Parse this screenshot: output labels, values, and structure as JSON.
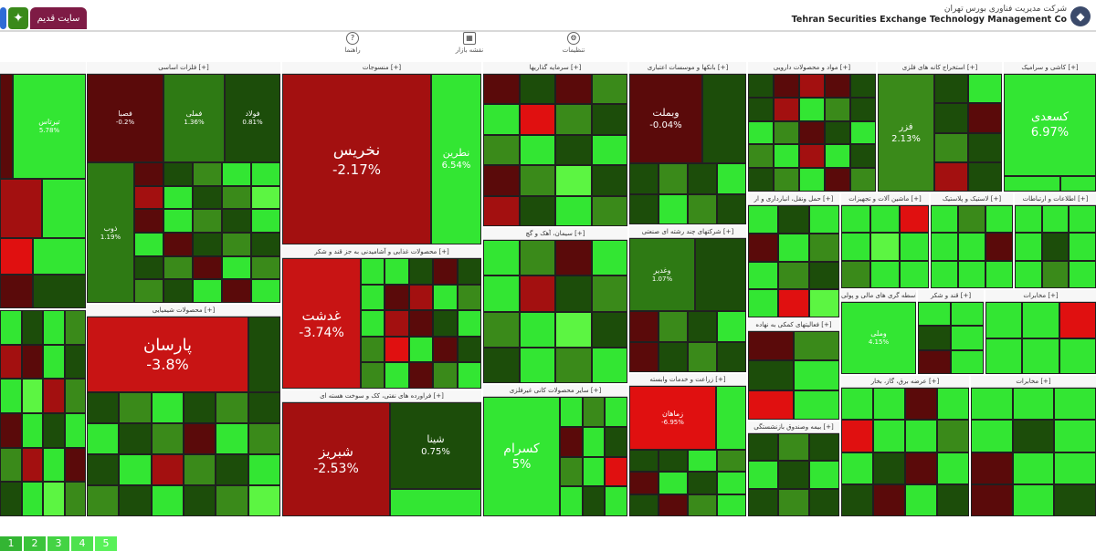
{
  "header": {
    "old_site_label": "سایت قدیم",
    "brand_fa": "شرکت مدیریت فناوری بورس تهران",
    "brand_en": "Tehran Securities Exchange Technology Management Co",
    "icons": [
      "grid-icon",
      "home-icon",
      "company-logo-icon"
    ]
  },
  "subnav": [
    {
      "label": "راهنما",
      "icon": "help-icon"
    },
    {
      "label": "نقشه بازار",
      "icon": "map-icon"
    },
    {
      "label": "تنظیمات",
      "icon": "settings-icon"
    }
  ],
  "colors": {
    "red_dark": "#5a0a0a",
    "red": "#a31010",
    "red_bright": "#e01010",
    "green_dark": "#1c4d0a",
    "green": "#3a8a1a",
    "green_bright": "#33e633",
    "lime": "#5cf542"
  },
  "sectors": [
    {
      "title": "فلزات اساسی [+]",
      "tiles": [
        {
          "name": "فولاد",
          "pct": "0.81%",
          "color": "#1c4d0a"
        },
        {
          "name": "فملی",
          "pct": "1.36%",
          "color": "#2e7a14"
        },
        {
          "name": "فصبا",
          "pct": "-0.2%",
          "color": "#5a0a0a"
        },
        {
          "name": "ذوب",
          "pct": "1.19%",
          "color": "#2e7a14"
        }
      ]
    },
    {
      "title": "منسوجات [+]",
      "tiles": [
        {
          "name": "نخریس",
          "pct": "-2.17%",
          "color": "#a31010"
        },
        {
          "name": "نطرین",
          "pct": "6.54%",
          "color": "#33e633"
        }
      ]
    },
    {
      "title": "سرمایه گذاریها [+]",
      "tiles": []
    },
    {
      "title": "بانکها و موسسات اعتباری [+]",
      "tiles": [
        {
          "name": "وبملت",
          "pct": "-0.04%",
          "color": "#5a0a0a"
        }
      ]
    },
    {
      "title": "مواد و محصولات دارویی [+]",
      "tiles": []
    },
    {
      "title": "استخراج کانه های فلزی [+]",
      "tiles": [
        {
          "name": "فزر",
          "pct": "2.13%",
          "color": "#3a8a1a"
        }
      ]
    },
    {
      "title": "کاشی و سرامیک [+]",
      "tiles": [
        {
          "name": "کسعدی",
          "pct": "6.97%",
          "color": "#33e633"
        }
      ]
    },
    {
      "title": "محصولات شیمیایی [+]",
      "tiles": [
        {
          "name": "پارسان",
          "pct": "-3.8%",
          "color": "#c81414"
        }
      ]
    },
    {
      "title": "محصولات غذایی و آشامیدنی به جز قند و شکر [+]",
      "tiles": [
        {
          "name": "غدشت",
          "pct": "-3.74%",
          "color": "#c81414"
        }
      ]
    },
    {
      "title": "فراورده های نفتی، کک و سوخت هسته ای [+]",
      "tiles": [
        {
          "name": "شبریز",
          "pct": "-2.53%",
          "color": "#a31010"
        },
        {
          "name": "شینا",
          "pct": "0.75%",
          "color": "#1c4d0a"
        }
      ]
    },
    {
      "title": "سیمان، آهک و گچ [+]",
      "tiles": []
    },
    {
      "title": "سایر محصولات کانی غیرفلزی [+]",
      "tiles": [
        {
          "name": "کسرام",
          "pct": "5%",
          "color": "#33e633"
        }
      ]
    },
    {
      "title": "شرکتهای چند رشته ای صنعتی [+]",
      "tiles": [
        {
          "name": "وغدیر",
          "pct": "1.07%",
          "color": "#2e7a14"
        }
      ]
    },
    {
      "title": "زراعت و خدمات وابسته [+]",
      "tiles": [
        {
          "name": "زماهان",
          "pct": "-6.95%",
          "color": "#e01010"
        }
      ]
    },
    {
      "title": "فعالیتهای کمکی به نهاده [+]",
      "tiles": []
    },
    {
      "title": "لاستیک و پلاستیک [+]",
      "tiles": []
    },
    {
      "title": "اطلاعات و ارتباطات [+]",
      "tiles": []
    },
    {
      "title": "ماشین آلات و تجهیزات [+]",
      "tiles": []
    },
    {
      "title": "حمل ونقل، انبارداری و ار [+]",
      "tiles": []
    },
    {
      "title": "واسطه گری های مالی و پولی [+]",
      "tiles": [
        {
          "name": "وملی",
          "pct": "4.15%",
          "color": "#33e633"
        }
      ]
    },
    {
      "title": "قند و شکر [+]",
      "tiles": []
    },
    {
      "title": "بیمه وصندوق بازنشستگی [+]",
      "tiles": []
    },
    {
      "title": "عرضه برق، گاز، بخار [+]",
      "tiles": []
    },
    {
      "title": "مخابرات [+]",
      "tiles": []
    },
    {
      "title": "انبوه سازی [+]",
      "tiles": []
    }
  ],
  "side_labels": {
    "left_top_pct": "5.78%",
    "left_top_name": "تیرتاس"
  },
  "legend": [
    "1",
    "2",
    "3",
    "4",
    "5"
  ]
}
